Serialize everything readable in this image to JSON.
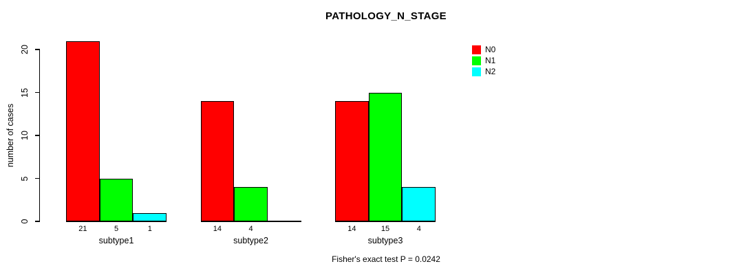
{
  "chart_data": {
    "type": "bar",
    "title": "PATHOLOGY_N_STAGE",
    "xlabel": "",
    "ylabel": "number of cases",
    "ylim": [
      0,
      21
    ],
    "yticks": [
      0,
      5,
      10,
      15,
      20
    ],
    "grid": false,
    "legend_position": "right",
    "categories": [
      "subtype1",
      "subtype2",
      "subtype3"
    ],
    "series": [
      {
        "name": "N0",
        "color": "#ff0000",
        "values": [
          21,
          14,
          14
        ]
      },
      {
        "name": "N1",
        "color": "#00ff00",
        "values": [
          5,
          4,
          15
        ]
      },
      {
        "name": "N2",
        "color": "#00ffff",
        "values": [
          1,
          0,
          4
        ]
      }
    ],
    "bar_value_labels": [
      [
        "21",
        "5",
        "1"
      ],
      [
        "14",
        "4",
        ""
      ],
      [
        "14",
        "15",
        "4"
      ]
    ],
    "annotation": "Fisher's exact test P = 0.0242"
  }
}
